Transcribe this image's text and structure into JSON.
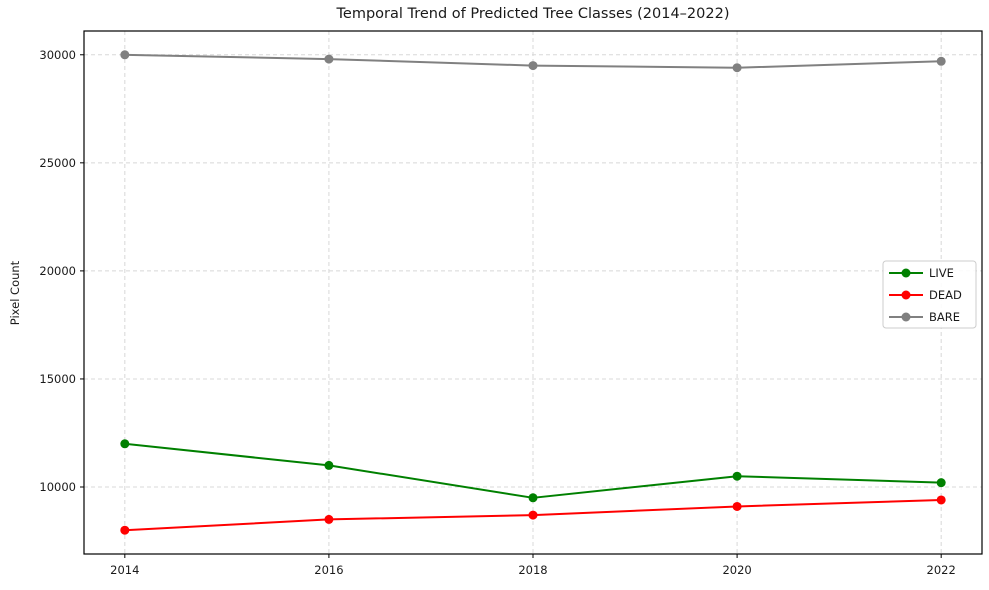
{
  "chart_data": {
    "type": "line",
    "title": "Temporal Trend of Predicted Tree Classes (2014–2022)",
    "xlabel": "",
    "ylabel": "Pixel Count",
    "x": [
      2014,
      2016,
      2018,
      2020,
      2022
    ],
    "series": [
      {
        "name": "LIVE",
        "color": "#008000",
        "values": [
          12000,
          11000,
          9500,
          10500,
          10200
        ]
      },
      {
        "name": "DEAD",
        "color": "#ff0000",
        "values": [
          8000,
          8500,
          8700,
          9100,
          9400
        ]
      },
      {
        "name": "BARE",
        "color": "#808080",
        "values": [
          30000,
          29800,
          29500,
          29400,
          29700
        ]
      }
    ],
    "xticks": [
      2014,
      2016,
      2018,
      2020,
      2022
    ],
    "yticks": [
      10000,
      15000,
      20000,
      25000,
      30000
    ],
    "xlim": [
      2013.6,
      2022.4
    ],
    "ylim": [
      6900,
      31100
    ],
    "grid": true,
    "grid_color": "#d8d8d8",
    "spine_color": "#000000",
    "legend_position": "center-right",
    "legend_labels": [
      "LIVE",
      "DEAD",
      "BARE"
    ]
  }
}
